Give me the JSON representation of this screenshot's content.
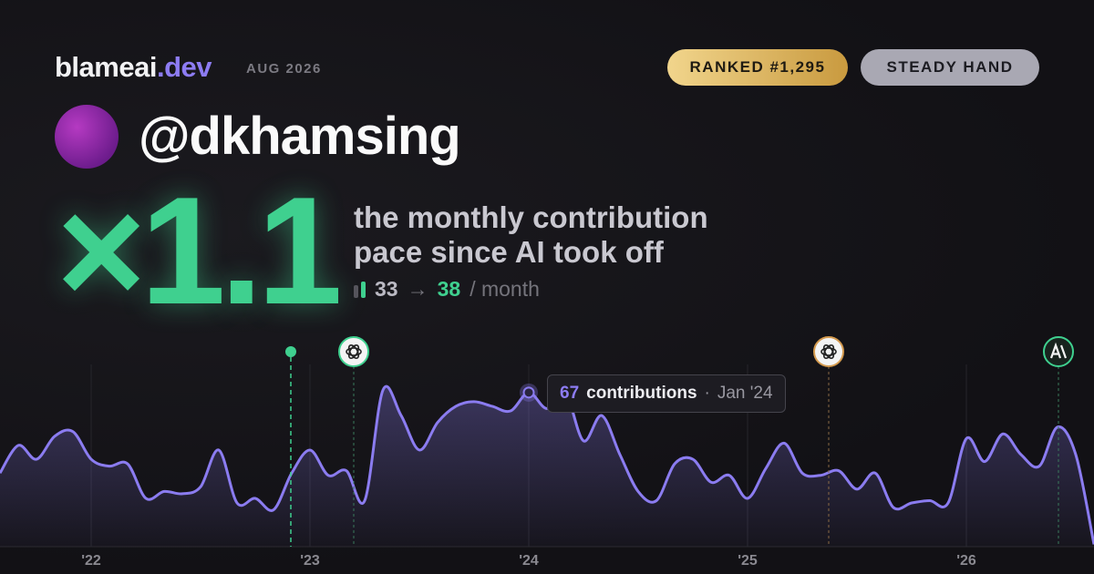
{
  "header": {
    "brand": "blameai",
    "brand_suffix": ".dev",
    "date": "AUG 2026",
    "rank": "RANKED #1,295",
    "style": "STEADY HAND"
  },
  "profile": {
    "handle": "@dkhamsing"
  },
  "summary": {
    "multiplier": "×1.1",
    "description": [
      "the monthly contribution",
      "pace since AI took off"
    ],
    "before": 33,
    "arrow": "→",
    "after": 38,
    "unit": "/ month"
  },
  "chart_data": {
    "type": "area-line",
    "color": "#8b7cf0",
    "categories": [
      null,
      null,
      null,
      null,
      null,
      "'22",
      null,
      null,
      null,
      null,
      null,
      null,
      null,
      null,
      null,
      null,
      null,
      "'23",
      null,
      null,
      null,
      null,
      null,
      null,
      null,
      null,
      null,
      null,
      null,
      "'24",
      null,
      null,
      null,
      null,
      null,
      null,
      null,
      null,
      null,
      null,
      null,
      "'25",
      null,
      null,
      null,
      null,
      null,
      null,
      null,
      null,
      null,
      null,
      null,
      "'26",
      null,
      null,
      null,
      null,
      null,
      null,
      null
    ],
    "values": [
      32,
      44,
      38,
      48,
      50,
      38,
      35,
      36,
      21,
      24,
      23,
      26,
      42,
      19,
      21,
      16,
      32,
      42,
      31,
      33,
      20,
      68,
      57,
      42,
      54,
      61,
      63,
      61,
      59,
      67,
      60,
      67,
      46,
      57,
      40,
      24,
      20,
      36,
      38,
      28,
      31,
      21,
      34,
      45,
      32,
      31,
      33,
      25,
      32,
      17,
      19,
      20,
      19,
      47,
      37,
      49,
      40,
      35,
      52,
      40,
      1
    ],
    "ylim": [
      0,
      80
    ],
    "tooltip": {
      "unit": "contributions",
      "separator": "·",
      "date": "Jan '24"
    }
  }
}
